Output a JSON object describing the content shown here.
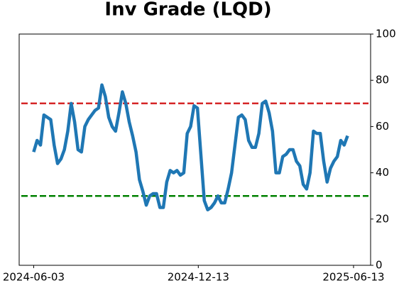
{
  "chart_data": {
    "type": "line",
    "title": "Inv Grade (LQD)",
    "x": [
      "2024-06-03",
      "2024-06-07",
      "2024-06-11",
      "2024-06-15",
      "2024-06-19",
      "2024-06-23",
      "2024-06-27",
      "2024-07-01",
      "2024-07-05",
      "2024-07-09",
      "2024-07-13",
      "2024-07-17",
      "2024-07-21",
      "2024-07-25",
      "2024-07-29",
      "2024-08-02",
      "2024-08-06",
      "2024-08-10",
      "2024-08-14",
      "2024-08-18",
      "2024-08-22",
      "2024-08-26",
      "2024-08-30",
      "2024-09-03",
      "2024-09-07",
      "2024-09-11",
      "2024-09-15",
      "2024-09-19",
      "2024-09-23",
      "2024-09-27",
      "2024-10-01",
      "2024-10-05",
      "2024-10-09",
      "2024-10-13",
      "2024-10-17",
      "2024-10-21",
      "2024-10-25",
      "2024-10-29",
      "2024-11-02",
      "2024-11-06",
      "2024-11-10",
      "2024-11-14",
      "2024-11-18",
      "2024-11-22",
      "2024-11-26",
      "2024-11-30",
      "2024-12-04",
      "2024-12-08",
      "2024-12-12",
      "2024-12-16",
      "2024-12-20",
      "2024-12-24",
      "2024-12-28",
      "2025-01-01",
      "2025-01-05",
      "2025-01-09",
      "2025-01-13",
      "2025-01-17",
      "2025-01-21",
      "2025-01-25",
      "2025-01-29",
      "2025-02-02",
      "2025-02-06",
      "2025-02-10",
      "2025-02-14",
      "2025-02-18",
      "2025-02-22",
      "2025-02-26",
      "2025-03-02",
      "2025-03-06",
      "2025-03-10",
      "2025-03-14",
      "2025-03-18",
      "2025-03-22",
      "2025-03-26",
      "2025-03-30",
      "2025-04-03",
      "2025-04-07",
      "2025-04-11",
      "2025-04-15",
      "2025-04-19",
      "2025-04-23",
      "2025-04-27",
      "2025-05-01",
      "2025-05-05",
      "2025-05-09",
      "2025-05-13",
      "2025-05-17",
      "2025-05-21",
      "2025-05-25",
      "2025-05-29",
      "2025-06-02",
      "2025-06-06"
    ],
    "series": [
      {
        "color": "#1f77b4",
        "values": [
          49,
          54,
          52,
          65,
          64,
          63,
          52,
          44,
          46,
          50,
          58,
          70,
          62,
          50,
          49,
          60,
          63,
          65,
          67,
          68,
          78,
          73,
          64,
          60,
          58,
          66,
          75,
          70,
          62,
          56,
          49,
          37,
          32,
          26,
          30,
          31,
          31,
          25,
          25,
          36,
          41,
          40,
          41,
          39,
          40,
          57,
          60,
          69,
          68,
          48,
          28,
          24,
          25,
          27,
          30,
          27,
          27,
          33,
          40,
          52,
          64,
          65,
          63,
          54,
          51,
          51,
          57,
          70,
          71,
          66,
          58,
          40,
          40,
          47,
          48,
          50,
          50,
          45,
          43,
          35,
          33,
          40,
          58,
          57,
          57,
          45,
          36,
          42,
          45,
          47,
          54,
          52,
          56
        ]
      }
    ],
    "hlines": [
      {
        "value": 70,
        "color": "#d62728"
      },
      {
        "value": 30,
        "color": "#008000"
      }
    ],
    "xlim": [
      "2024-05-17",
      "2025-07-03"
    ],
    "xticks": [
      "2024-06-03",
      "2024-12-13",
      "2025-06-13"
    ],
    "ylim": [
      0,
      100
    ],
    "yticks": [
      0,
      20,
      40,
      60,
      80,
      100
    ]
  }
}
